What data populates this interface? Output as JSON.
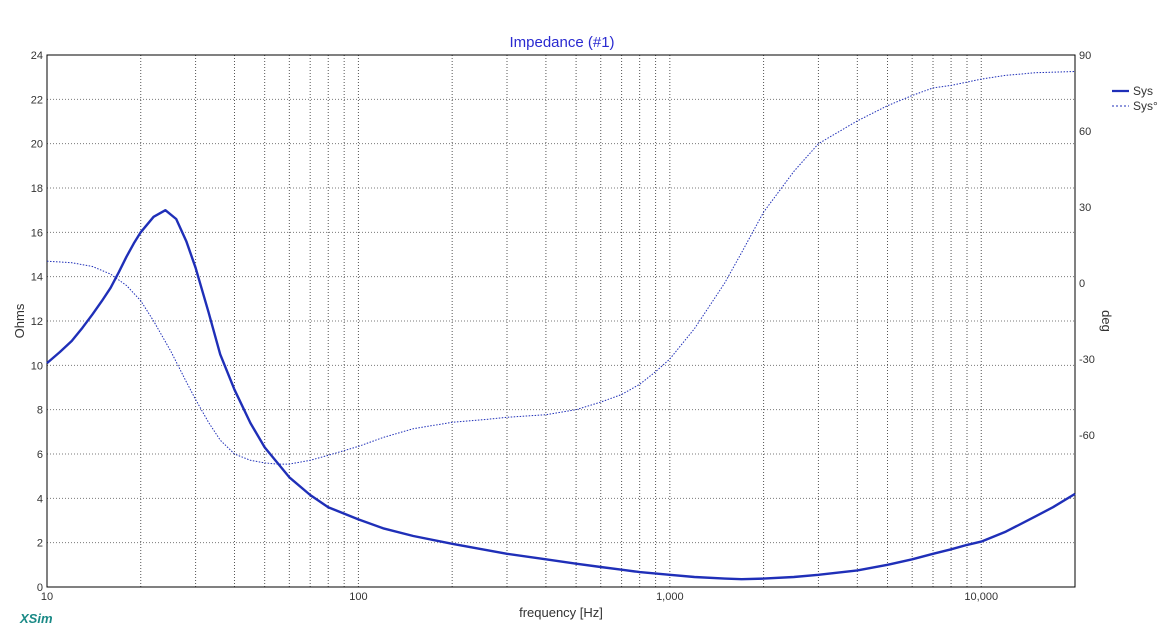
{
  "chart_data": {
    "type": "line",
    "title": "Impedance (#1)",
    "xlabel": "frequency [Hz]",
    "ylabel_left": "Ohms",
    "ylabel_right": "deg",
    "x_scale": "log",
    "xlim": [
      10,
      20000
    ],
    "ylim_left": [
      0,
      24
    ],
    "ylim_right": [
      -120,
      90
    ],
    "x_tick_labels": [
      "10",
      "100",
      "1,000",
      "10,000"
    ],
    "x_ticks": [
      10,
      100,
      1000,
      10000
    ],
    "y_left_ticks": [
      0,
      2,
      4,
      6,
      8,
      10,
      12,
      14,
      16,
      18,
      20,
      22,
      24
    ],
    "y_right_ticks": [
      -60,
      -30,
      0,
      30,
      60,
      90
    ],
    "grid": true,
    "legend_position": "right",
    "series": [
      {
        "name": "Sys",
        "axis": "left",
        "style": "solid",
        "color": "#1f2fb8",
        "x": [
          10,
          11,
          12,
          13,
          14,
          15,
          16,
          17,
          18,
          19,
          20,
          22,
          24,
          26,
          28,
          30,
          33,
          36,
          40,
          45,
          50,
          60,
          70,
          80,
          100,
          120,
          150,
          200,
          250,
          300,
          400,
          500,
          600,
          700,
          800,
          1000,
          1200,
          1500,
          1700,
          2000,
          2500,
          3000,
          4000,
          5000,
          6000,
          7000,
          8000,
          9000,
          10000,
          12000,
          15000,
          17000,
          20000
        ],
        "y": [
          10.1,
          10.6,
          11.1,
          11.7,
          12.3,
          12.9,
          13.5,
          14.2,
          14.9,
          15.5,
          16.0,
          16.7,
          17.0,
          16.6,
          15.6,
          14.4,
          12.4,
          10.5,
          8.9,
          7.4,
          6.3,
          4.95,
          4.15,
          3.6,
          3.05,
          2.65,
          2.3,
          1.95,
          1.7,
          1.5,
          1.25,
          1.05,
          0.9,
          0.78,
          0.67,
          0.55,
          0.45,
          0.38,
          0.35,
          0.38,
          0.45,
          0.55,
          0.75,
          1.0,
          1.25,
          1.5,
          1.7,
          1.9,
          2.05,
          2.5,
          3.2,
          3.6,
          4.2
        ]
      },
      {
        "name": "Sys°",
        "axis": "right",
        "style": "dashed",
        "color": "#1f2fb8",
        "x": [
          10,
          12,
          14,
          16,
          18,
          20,
          22,
          25,
          28,
          30,
          33,
          36,
          40,
          45,
          50,
          55,
          60,
          70,
          80,
          100,
          120,
          150,
          200,
          250,
          300,
          400,
          500,
          600,
          700,
          800,
          900,
          1000,
          1200,
          1500,
          1700,
          2000,
          2500,
          3000,
          4000,
          5000,
          6000,
          7000,
          8000,
          10000,
          12000,
          15000,
          20000
        ],
        "y": [
          8.6,
          8.0,
          6.5,
          3.5,
          -1.0,
          -7.0,
          -15.0,
          -27.0,
          -39.0,
          -46.0,
          -55.0,
          -62.0,
          -67.5,
          -70.0,
          -71.0,
          -71.5,
          -71.5,
          -70.0,
          -68.0,
          -64.5,
          -61.0,
          -57.5,
          -55.0,
          -54.0,
          -53.0,
          -52.0,
          -50.0,
          -47.0,
          -44.0,
          -40.0,
          -35.0,
          -30.0,
          -18.0,
          0.0,
          12.0,
          28.0,
          44.0,
          55.0,
          64.0,
          70.0,
          74.0,
          77.0,
          78.0,
          80.5,
          82.0,
          83.0,
          83.5
        ]
      }
    ]
  },
  "legend": {
    "items": [
      "Sys",
      "Sys°"
    ]
  },
  "branding": {
    "logo_text": "XSim"
  }
}
